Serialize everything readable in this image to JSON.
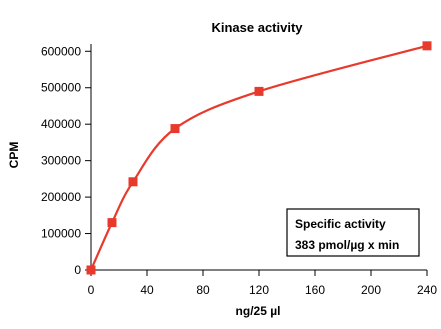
{
  "chart_data": {
    "type": "scatter",
    "title": "Kinase activity",
    "xlabel": "ng/25 µl",
    "ylabel": "CPM",
    "xlim": [
      0,
      240
    ],
    "ylim": [
      0,
      620000
    ],
    "x_ticks": [
      0,
      40,
      80,
      120,
      160,
      200,
      240
    ],
    "y_ticks": [
      0,
      100000,
      200000,
      300000,
      400000,
      500000,
      600000
    ],
    "grid": false,
    "series": [
      {
        "x": [
          0,
          15,
          30,
          60,
          120,
          240
        ],
        "y": [
          0,
          130000,
          242000,
          388000,
          490000,
          615000
        ],
        "color": "#e83a2c",
        "fit": "smooth curve"
      }
    ],
    "annotation": {
      "line1": "Specific activity",
      "line2": "383 pmol/µg x min"
    }
  }
}
